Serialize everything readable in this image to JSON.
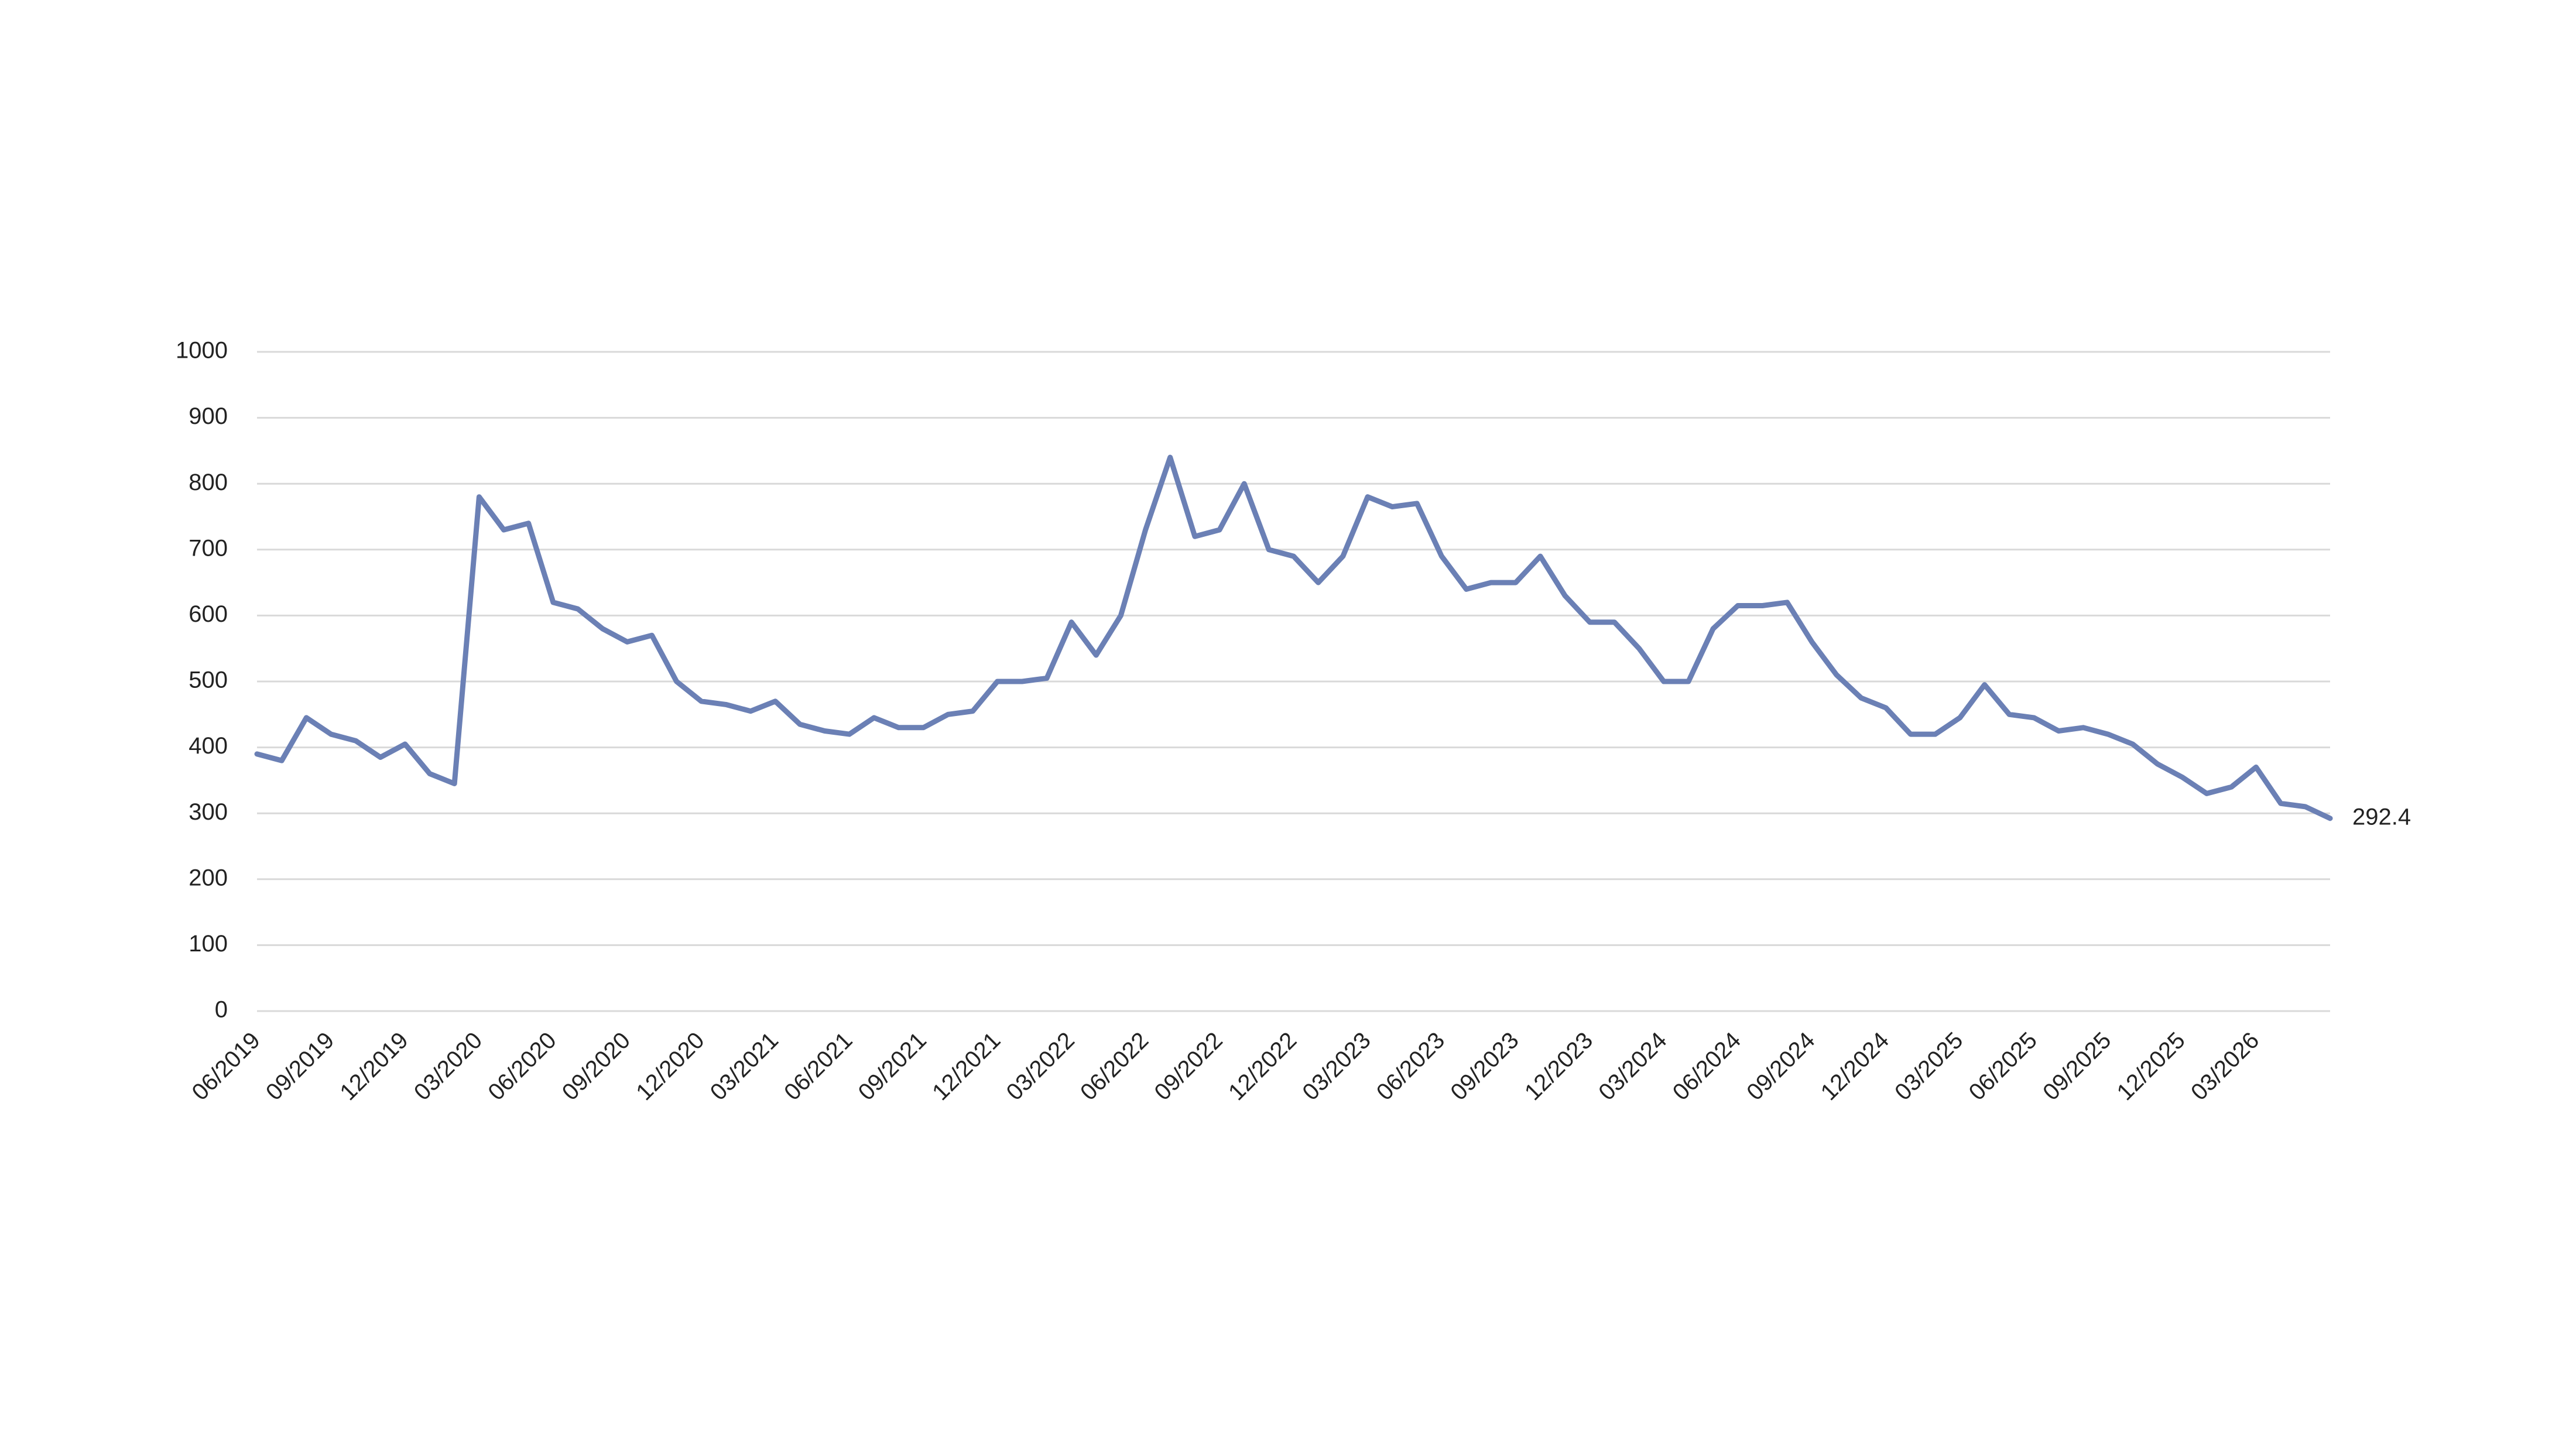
{
  "chart_data": {
    "type": "line",
    "x": [
      "06/2019",
      null,
      null,
      "09/2019",
      null,
      null,
      "12/2019",
      null,
      null,
      "03/2020",
      null,
      null,
      "06/2020",
      null,
      null,
      "09/2020",
      null,
      null,
      "12/2020",
      null,
      null,
      "03/2021",
      null,
      null,
      "06/2021",
      null,
      null,
      "09/2021",
      null,
      null,
      "12/2021",
      null,
      null,
      "03/2022",
      null,
      null,
      "06/2022",
      null,
      null,
      "09/2022",
      null,
      null,
      "12/2022",
      null,
      null,
      "03/2023",
      null,
      null,
      "06/2023",
      null,
      null,
      "09/2023",
      null,
      null,
      "12/2023",
      null,
      null,
      "03/2024",
      null,
      null,
      "06/2024",
      null,
      null,
      "09/2024",
      null,
      null,
      "12/2024",
      null,
      null,
      "03/2025",
      null,
      null,
      "06/2025",
      null,
      null,
      "09/2025",
      null,
      null,
      "12/2025",
      null,
      null,
      "03/2026",
      null,
      null,
      null
    ],
    "values": [
      390,
      380,
      445,
      420,
      410,
      385,
      405,
      360,
      345,
      780,
      730,
      740,
      620,
      610,
      580,
      560,
      570,
      500,
      470,
      465,
      455,
      470,
      435,
      425,
      420,
      445,
      430,
      430,
      450,
      455,
      500,
      500,
      505,
      590,
      540,
      600,
      730,
      840,
      720,
      730,
      800,
      700,
      690,
      650,
      690,
      780,
      765,
      770,
      690,
      640,
      650,
      650,
      690,
      630,
      590,
      590,
      550,
      500,
      500,
      580,
      615,
      615,
      620,
      560,
      510,
      475,
      460,
      420,
      420,
      445,
      495,
      450,
      445,
      425,
      430,
      420,
      405,
      375,
      355,
      330,
      340,
      370,
      315,
      310,
      292.4
    ],
    "color": "#6b80b5",
    "ylim": [
      0,
      1000
    ],
    "yticks": [
      0,
      100,
      200,
      300,
      400,
      500,
      600,
      700,
      800,
      900,
      1000
    ],
    "grid": true,
    "end_label": true
  }
}
